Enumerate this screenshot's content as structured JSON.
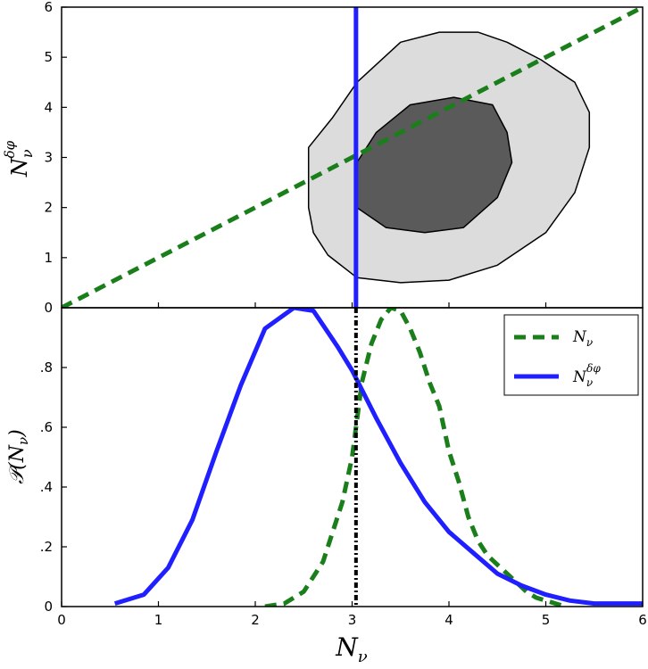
{
  "chart_data": [
    {
      "type": "contour",
      "panel": "top",
      "xlim": [
        0,
        6
      ],
      "ylim": [
        0,
        6
      ],
      "xticks": [
        0,
        1,
        2,
        3,
        4,
        5,
        6
      ],
      "yticks": [
        "0",
        "1",
        "2",
        "3",
        "4",
        "5",
        "6"
      ],
      "ylabel": "N_ν^δφ",
      "ylabel_main": "N",
      "ylabel_sub": "ν",
      "ylabel_sup": "δφ",
      "contours": [
        {
          "level": "outer",
          "fill": "#dcdcdc",
          "points": [
            [
              2.55,
              2.0
            ],
            [
              2.55,
              3.2
            ],
            [
              2.8,
              3.8
            ],
            [
              3.05,
              4.5
            ],
            [
              3.5,
              5.3
            ],
            [
              3.9,
              5.5
            ],
            [
              4.3,
              5.5
            ],
            [
              4.6,
              5.3
            ],
            [
              4.95,
              4.95
            ],
            [
              5.3,
              4.5
            ],
            [
              5.45,
              3.9
            ],
            [
              5.45,
              3.2
            ],
            [
              5.3,
              2.3
            ],
            [
              5.0,
              1.5
            ],
            [
              4.5,
              0.85
            ],
            [
              4.0,
              0.55
            ],
            [
              3.5,
              0.5
            ],
            [
              3.05,
              0.6
            ],
            [
              2.75,
              1.05
            ],
            [
              2.6,
              1.5
            ]
          ]
        },
        {
          "level": "inner",
          "fill": "#5a5a5a",
          "points": [
            [
              3.05,
              2.0
            ],
            [
              3.05,
              2.9
            ],
            [
              3.25,
              3.5
            ],
            [
              3.6,
              4.05
            ],
            [
              4.05,
              4.2
            ],
            [
              4.45,
              4.05
            ],
            [
              4.6,
              3.5
            ],
            [
              4.65,
              2.9
            ],
            [
              4.5,
              2.2
            ],
            [
              4.15,
              1.6
            ],
            [
              3.75,
              1.5
            ],
            [
              3.35,
              1.6
            ]
          ]
        }
      ],
      "lines": [
        {
          "style": "dashed",
          "color": "#1a7f1a",
          "x": [
            0,
            6
          ],
          "y": [
            0,
            6
          ]
        },
        {
          "style": "solid",
          "color": "#1f1fff",
          "x": [
            3.04,
            3.04
          ],
          "y": [
            0,
            6
          ]
        }
      ]
    },
    {
      "type": "line",
      "panel": "bottom",
      "xlim": [
        0,
        6
      ],
      "ylim": [
        0,
        1
      ],
      "xticks": [
        "0",
        "1",
        "2",
        "3",
        "4",
        "5",
        "6"
      ],
      "yticks": [
        {
          "v": 0,
          "label": "0"
        },
        {
          "v": 0.2,
          "label": ".2"
        },
        {
          "v": 0.4,
          "label": ".4"
        },
        {
          "v": 0.6,
          "label": ".6"
        },
        {
          "v": 0.8,
          "label": ".8"
        }
      ],
      "xlabel": "N_ν",
      "xlabel_main": "N",
      "xlabel_sub": "ν",
      "ylabel": "𝒫(N_ν)",
      "ylabel_text": "𝒫(N",
      "ylabel_sub": "ν",
      "ylabel_close": ")",
      "series": [
        {
          "name": "N_ν",
          "legend_main": "N",
          "legend_sub": "ν",
          "legend_sup": "",
          "style": "dashed",
          "color": "#1a7f1a",
          "x": [
            2.1,
            2.3,
            2.5,
            2.7,
            2.9,
            3.0,
            3.1,
            3.2,
            3.3,
            3.4,
            3.5,
            3.6,
            3.7,
            3.8,
            3.9,
            4.0,
            4.1,
            4.2,
            4.3,
            4.4,
            4.5,
            4.6,
            4.7,
            4.8,
            4.9,
            5.0,
            5.1,
            5.2
          ],
          "y": [
            0.0,
            0.01,
            0.05,
            0.15,
            0.35,
            0.5,
            0.75,
            0.88,
            0.96,
            1.0,
            0.99,
            0.93,
            0.85,
            0.75,
            0.67,
            0.52,
            0.42,
            0.3,
            0.22,
            0.17,
            0.14,
            0.11,
            0.08,
            0.05,
            0.03,
            0.02,
            0.01,
            0.0
          ]
        },
        {
          "name": "N_ν^δφ",
          "legend_main": "N",
          "legend_sub": "ν",
          "legend_sup": "δφ",
          "style": "solid",
          "color": "#1f1fff",
          "x": [
            0.55,
            0.85,
            1.1,
            1.35,
            1.6,
            1.85,
            2.1,
            2.4,
            2.6,
            2.85,
            3.0,
            3.25,
            3.5,
            3.75,
            4.0,
            4.25,
            4.5,
            4.75,
            5.0,
            5.25,
            5.5,
            5.75,
            6.0
          ],
          "y": [
            0.01,
            0.04,
            0.13,
            0.29,
            0.52,
            0.74,
            0.93,
            1.0,
            0.99,
            0.87,
            0.79,
            0.63,
            0.48,
            0.35,
            0.25,
            0.18,
            0.11,
            0.07,
            0.04,
            0.02,
            0.01,
            0.01,
            0.01
          ]
        }
      ],
      "vline": {
        "x": 3.04,
        "style": "dash-dot",
        "color": "#000000"
      },
      "legend_position": "top-right"
    }
  ]
}
